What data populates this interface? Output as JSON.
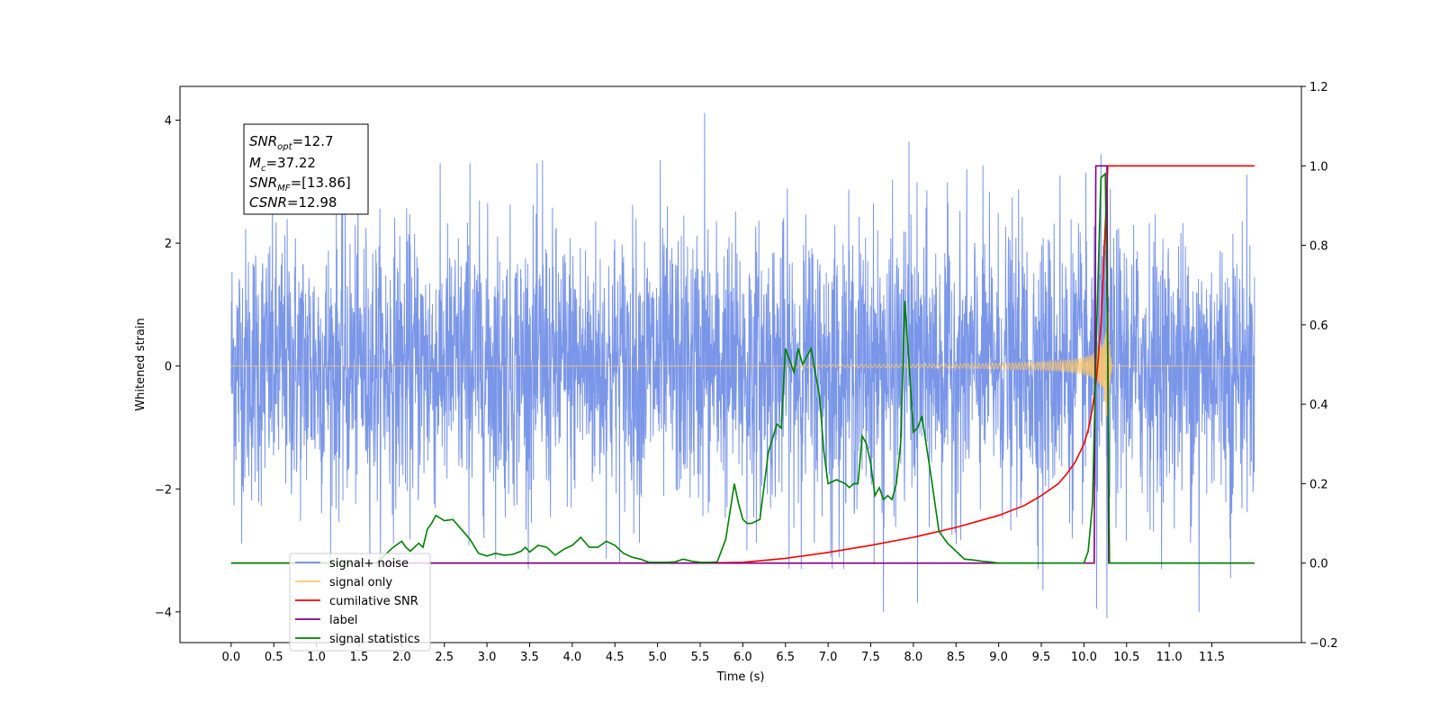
{
  "chart_data": {
    "type": "line",
    "xlabel": "Time (s)",
    "ylabel": "Whitened strain",
    "ylabel_right": "",
    "xlim": [
      -0.6,
      12.55
    ],
    "ylim_left": [
      -4.5,
      4.55
    ],
    "ylim_right": [
      -0.2,
      1.2
    ],
    "x_ticks": [
      "0.0",
      "0.5",
      "1.0",
      "1.5",
      "2.0",
      "2.5",
      "3.0",
      "3.5",
      "4.0",
      "4.5",
      "5.0",
      "5.5",
      "6.0",
      "6.5",
      "7.0",
      "7.5",
      "8.0",
      "8.5",
      "9.0",
      "9.5",
      "10.0",
      "10.5",
      "11.0",
      "11.5"
    ],
    "y_ticks_left": [
      "−4",
      "−2",
      "0",
      "2",
      "4"
    ],
    "y_ticks_right": [
      "−0.2",
      "0.0",
      "0.2",
      "0.4",
      "0.6",
      "0.8",
      "1.0",
      "1.2"
    ],
    "annotation": {
      "snr_opt_label": "SNR",
      "snr_opt_sub": "opt",
      "snr_opt_value": "=12.7",
      "mc_label": "M",
      "mc_sub": "c",
      "mc_value": "=37.22",
      "snr_mf_label": "SNR",
      "snr_mf_sub": "MF",
      "snr_mf_value": "=[13.86]",
      "csnr_label": "CSNR",
      "csnr_value": "=12.98"
    },
    "legend": {
      "placement": "lower-left",
      "items": [
        {
          "label": "signal+ noise",
          "color": "#6b8be6"
        },
        {
          "label": "signal only",
          "color": "#ffc766"
        },
        {
          "label": "cumilative SNR",
          "color": "#ff0000"
        },
        {
          "label": "label",
          "color": "#800080"
        },
        {
          "label": "signal statistics",
          "color": "#008000"
        }
      ]
    },
    "series": [
      {
        "name": "signal+ noise",
        "axis": "left",
        "color": "#6b8be6",
        "t_range": [
          0.0,
          12.0
        ],
        "std": 1.1,
        "peaks": [
          [
            5.55,
            4.12
          ],
          [
            7.95,
            3.65
          ],
          [
            10.2,
            3.45
          ],
          [
            2.8,
            3.3
          ],
          [
            3.65,
            3.35
          ],
          [
            5.03,
            3.35
          ],
          [
            9.72,
            3.1
          ],
          [
            7.65,
            -4.0
          ],
          [
            10.27,
            -4.1
          ],
          [
            11.35,
            -4.0
          ],
          [
            8.05,
            -3.85
          ],
          [
            10.15,
            -3.95
          ],
          [
            6.05,
            -3.0
          ],
          [
            9.52,
            -3.65
          ],
          [
            11.72,
            -3.45
          ],
          [
            7.05,
            -3.3
          ]
        ]
      },
      {
        "name": "signal only",
        "axis": "left",
        "color": "#ffc766",
        "chirp_start": 6.5,
        "merger_time": 10.28,
        "peak_amplitude": 1.6
      },
      {
        "name": "cumilative SNR",
        "axis": "right",
        "color": "#ff0000",
        "x": [
          0.0,
          5.5,
          6.0,
          6.5,
          7.0,
          7.5,
          8.0,
          8.5,
          9.0,
          9.3,
          9.5,
          9.7,
          9.8,
          9.9,
          10.0,
          10.05,
          10.1,
          10.15,
          10.2,
          10.25,
          10.28,
          12.0
        ],
        "values": [
          0.0,
          0.0,
          0.002,
          0.012,
          0.027,
          0.045,
          0.065,
          0.09,
          0.12,
          0.145,
          0.17,
          0.2,
          0.225,
          0.255,
          0.3,
          0.335,
          0.39,
          0.47,
          0.6,
          0.85,
          1.0,
          1.0
        ]
      },
      {
        "name": "label",
        "axis": "right",
        "color": "#800080",
        "x": [
          0.0,
          10.12,
          10.14,
          10.27,
          10.29,
          12.0
        ],
        "values": [
          0.0,
          0.0,
          1.0,
          1.0,
          0.0,
          0.0
        ]
      },
      {
        "name": "signal statistics",
        "axis": "right",
        "color": "#008000",
        "x": [
          0.0,
          1.7,
          1.8,
          1.9,
          2.0,
          2.05,
          2.1,
          2.2,
          2.25,
          2.3,
          2.35,
          2.4,
          2.5,
          2.6,
          2.7,
          2.8,
          2.9,
          3.0,
          3.1,
          3.2,
          3.3,
          3.4,
          3.45,
          3.5,
          3.6,
          3.7,
          3.8,
          3.9,
          4.0,
          4.1,
          4.2,
          4.3,
          4.4,
          4.5,
          4.6,
          4.7,
          4.8,
          4.9,
          5.0,
          5.1,
          5.2,
          5.3,
          5.4,
          5.5,
          5.6,
          5.7,
          5.8,
          5.9,
          5.95,
          6.0,
          6.05,
          6.1,
          6.2,
          6.3,
          6.4,
          6.45,
          6.5,
          6.6,
          6.65,
          6.7,
          6.8,
          6.85,
          6.9,
          6.95,
          7.0,
          7.1,
          7.2,
          7.25,
          7.3,
          7.35,
          7.4,
          7.45,
          7.5,
          7.55,
          7.6,
          7.65,
          7.7,
          7.75,
          7.8,
          7.85,
          7.9,
          7.95,
          8.0,
          8.05,
          8.1,
          8.2,
          8.3,
          8.4,
          8.5,
          8.6,
          8.7,
          8.8,
          8.9,
          9.0,
          9.5,
          10.0,
          10.05,
          10.1,
          10.15,
          10.2,
          10.25,
          10.28,
          10.3,
          12.0
        ],
        "values": [
          0.0,
          0.0,
          0.02,
          0.04,
          0.055,
          0.04,
          0.03,
          0.05,
          0.04,
          0.085,
          0.1,
          0.12,
          0.107,
          0.11,
          0.085,
          0.06,
          0.025,
          0.018,
          0.025,
          0.02,
          0.022,
          0.03,
          0.04,
          0.028,
          0.045,
          0.04,
          0.02,
          0.035,
          0.045,
          0.065,
          0.04,
          0.04,
          0.055,
          0.045,
          0.025,
          0.015,
          0.01,
          0.002,
          0.002,
          0.002,
          0.003,
          0.01,
          0.005,
          0.002,
          0.002,
          0.003,
          0.06,
          0.2,
          0.15,
          0.11,
          0.1,
          0.1,
          0.11,
          0.28,
          0.35,
          0.34,
          0.54,
          0.48,
          0.54,
          0.5,
          0.54,
          0.48,
          0.42,
          0.28,
          0.2,
          0.21,
          0.2,
          0.19,
          0.2,
          0.2,
          0.32,
          0.3,
          0.25,
          0.17,
          0.19,
          0.16,
          0.17,
          0.16,
          0.2,
          0.3,
          0.66,
          0.5,
          0.33,
          0.34,
          0.37,
          0.23,
          0.08,
          0.05,
          0.03,
          0.01,
          0.008,
          0.005,
          0.003,
          0.0,
          0.0,
          0.0,
          0.03,
          0.15,
          0.6,
          0.97,
          0.98,
          0.5,
          0.0,
          0.0
        ]
      }
    ]
  }
}
